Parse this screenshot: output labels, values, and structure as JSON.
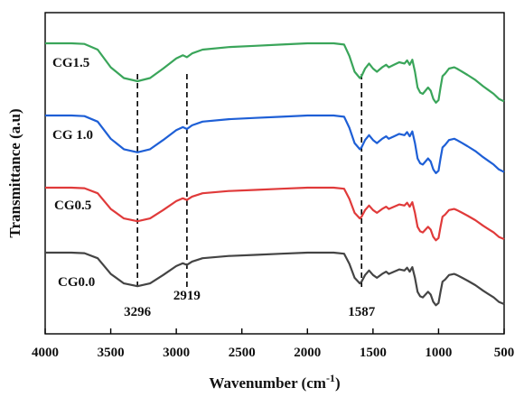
{
  "chart_data": {
    "type": "line",
    "title": "",
    "xlabel_main": "Wavenumber (cm",
    "xlabel_sup": "-1",
    "xlabel_close": ")",
    "ylabel": "Transmittance (a.u)",
    "xlim": [
      4000,
      500
    ],
    "x_reversed": true,
    "x_ticks": [
      4000,
      3500,
      3000,
      2500,
      2000,
      1500,
      1000,
      500
    ],
    "y_ticks_shown": false,
    "grid": false,
    "legend": "inline labels left of each curve",
    "peak_lines": [
      {
        "x": 3296,
        "label": "3296"
      },
      {
        "x": 2919,
        "label": "2919"
      },
      {
        "x": 1587,
        "label": "1587"
      }
    ],
    "series": [
      {
        "name": "CG1.5",
        "color": "#3aa55a",
        "offset": 3,
        "points": [
          [
            4000,
            1.0
          ],
          [
            3800,
            1.0
          ],
          [
            3700,
            0.99
          ],
          [
            3600,
            0.9
          ],
          [
            3500,
            0.62
          ],
          [
            3400,
            0.45
          ],
          [
            3296,
            0.4
          ],
          [
            3200,
            0.45
          ],
          [
            3100,
            0.6
          ],
          [
            3000,
            0.76
          ],
          [
            2950,
            0.81
          ],
          [
            2919,
            0.78
          ],
          [
            2880,
            0.84
          ],
          [
            2800,
            0.9
          ],
          [
            2600,
            0.94
          ],
          [
            2400,
            0.96
          ],
          [
            2200,
            0.98
          ],
          [
            2000,
            1.0
          ],
          [
            1800,
            1.0
          ],
          [
            1720,
            0.98
          ],
          [
            1680,
            0.8
          ],
          [
            1640,
            0.55
          ],
          [
            1600,
            0.45
          ],
          [
            1587,
            0.48
          ],
          [
            1560,
            0.6
          ],
          [
            1530,
            0.68
          ],
          [
            1500,
            0.6
          ],
          [
            1470,
            0.55
          ],
          [
            1430,
            0.62
          ],
          [
            1400,
            0.66
          ],
          [
            1380,
            0.62
          ],
          [
            1340,
            0.66
          ],
          [
            1300,
            0.7
          ],
          [
            1260,
            0.68
          ],
          [
            1240,
            0.73
          ],
          [
            1220,
            0.66
          ],
          [
            1200,
            0.74
          ],
          [
            1180,
            0.55
          ],
          [
            1160,
            0.3
          ],
          [
            1140,
            0.22
          ],
          [
            1120,
            0.2
          ],
          [
            1100,
            0.25
          ],
          [
            1080,
            0.3
          ],
          [
            1060,
            0.25
          ],
          [
            1040,
            0.12
          ],
          [
            1020,
            0.06
          ],
          [
            1000,
            0.1
          ],
          [
            985,
            0.3
          ],
          [
            970,
            0.48
          ],
          [
            950,
            0.52
          ],
          [
            920,
            0.6
          ],
          [
            880,
            0.62
          ],
          [
            860,
            0.6
          ],
          [
            820,
            0.55
          ],
          [
            780,
            0.5
          ],
          [
            720,
            0.42
          ],
          [
            660,
            0.32
          ],
          [
            620,
            0.26
          ],
          [
            580,
            0.2
          ],
          [
            540,
            0.12
          ],
          [
            500,
            0.08
          ]
        ]
      },
      {
        "name": "CG 1.0",
        "color": "#1e5fd6",
        "offset": 2,
        "points": [
          [
            4000,
            1.0
          ],
          [
            3800,
            1.0
          ],
          [
            3700,
            0.99
          ],
          [
            3600,
            0.9
          ],
          [
            3500,
            0.62
          ],
          [
            3400,
            0.45
          ],
          [
            3296,
            0.4
          ],
          [
            3200,
            0.45
          ],
          [
            3100,
            0.6
          ],
          [
            3000,
            0.76
          ],
          [
            2950,
            0.81
          ],
          [
            2919,
            0.78
          ],
          [
            2880,
            0.84
          ],
          [
            2800,
            0.9
          ],
          [
            2600,
            0.94
          ],
          [
            2400,
            0.96
          ],
          [
            2200,
            0.98
          ],
          [
            2000,
            1.0
          ],
          [
            1800,
            1.0
          ],
          [
            1720,
            0.98
          ],
          [
            1680,
            0.8
          ],
          [
            1640,
            0.55
          ],
          [
            1600,
            0.45
          ],
          [
            1587,
            0.48
          ],
          [
            1560,
            0.6
          ],
          [
            1530,
            0.68
          ],
          [
            1500,
            0.6
          ],
          [
            1470,
            0.55
          ],
          [
            1430,
            0.62
          ],
          [
            1400,
            0.66
          ],
          [
            1380,
            0.62
          ],
          [
            1340,
            0.66
          ],
          [
            1300,
            0.7
          ],
          [
            1260,
            0.68
          ],
          [
            1240,
            0.73
          ],
          [
            1220,
            0.66
          ],
          [
            1200,
            0.74
          ],
          [
            1180,
            0.55
          ],
          [
            1160,
            0.3
          ],
          [
            1140,
            0.22
          ],
          [
            1120,
            0.2
          ],
          [
            1100,
            0.25
          ],
          [
            1080,
            0.3
          ],
          [
            1060,
            0.25
          ],
          [
            1040,
            0.12
          ],
          [
            1020,
            0.06
          ],
          [
            1000,
            0.1
          ],
          [
            985,
            0.3
          ],
          [
            970,
            0.48
          ],
          [
            950,
            0.52
          ],
          [
            920,
            0.6
          ],
          [
            880,
            0.62
          ],
          [
            860,
            0.6
          ],
          [
            820,
            0.55
          ],
          [
            780,
            0.5
          ],
          [
            720,
            0.42
          ],
          [
            660,
            0.32
          ],
          [
            620,
            0.26
          ],
          [
            580,
            0.2
          ],
          [
            540,
            0.12
          ],
          [
            500,
            0.08
          ]
        ]
      },
      {
        "name": "CG0.5",
        "color": "#e03a3a",
        "offset": 1,
        "points": [
          [
            4000,
            1.0
          ],
          [
            3800,
            1.0
          ],
          [
            3700,
            0.99
          ],
          [
            3600,
            0.9
          ],
          [
            3500,
            0.62
          ],
          [
            3400,
            0.45
          ],
          [
            3296,
            0.4
          ],
          [
            3200,
            0.45
          ],
          [
            3100,
            0.6
          ],
          [
            3000,
            0.76
          ],
          [
            2950,
            0.81
          ],
          [
            2919,
            0.78
          ],
          [
            2880,
            0.84
          ],
          [
            2800,
            0.9
          ],
          [
            2600,
            0.94
          ],
          [
            2400,
            0.96
          ],
          [
            2200,
            0.98
          ],
          [
            2000,
            1.0
          ],
          [
            1800,
            1.0
          ],
          [
            1720,
            0.98
          ],
          [
            1680,
            0.8
          ],
          [
            1640,
            0.55
          ],
          [
            1600,
            0.45
          ],
          [
            1587,
            0.48
          ],
          [
            1560,
            0.6
          ],
          [
            1530,
            0.68
          ],
          [
            1500,
            0.6
          ],
          [
            1470,
            0.55
          ],
          [
            1430,
            0.62
          ],
          [
            1400,
            0.66
          ],
          [
            1380,
            0.62
          ],
          [
            1340,
            0.66
          ],
          [
            1300,
            0.7
          ],
          [
            1260,
            0.68
          ],
          [
            1240,
            0.73
          ],
          [
            1220,
            0.66
          ],
          [
            1200,
            0.74
          ],
          [
            1180,
            0.55
          ],
          [
            1160,
            0.3
          ],
          [
            1140,
            0.22
          ],
          [
            1120,
            0.2
          ],
          [
            1100,
            0.25
          ],
          [
            1080,
            0.3
          ],
          [
            1060,
            0.25
          ],
          [
            1040,
            0.12
          ],
          [
            1020,
            0.06
          ],
          [
            1000,
            0.1
          ],
          [
            985,
            0.3
          ],
          [
            970,
            0.48
          ],
          [
            950,
            0.52
          ],
          [
            920,
            0.6
          ],
          [
            880,
            0.62
          ],
          [
            860,
            0.6
          ],
          [
            820,
            0.55
          ],
          [
            780,
            0.5
          ],
          [
            720,
            0.42
          ],
          [
            660,
            0.32
          ],
          [
            620,
            0.26
          ],
          [
            580,
            0.2
          ],
          [
            540,
            0.12
          ],
          [
            500,
            0.08
          ]
        ]
      },
      {
        "name": "CG0.0",
        "color": "#444444",
        "offset": 0,
        "points": [
          [
            4000,
            1.0
          ],
          [
            3800,
            1.0
          ],
          [
            3700,
            0.99
          ],
          [
            3600,
            0.9
          ],
          [
            3500,
            0.62
          ],
          [
            3400,
            0.45
          ],
          [
            3296,
            0.4
          ],
          [
            3200,
            0.45
          ],
          [
            3100,
            0.6
          ],
          [
            3000,
            0.76
          ],
          [
            2950,
            0.81
          ],
          [
            2919,
            0.78
          ],
          [
            2880,
            0.84
          ],
          [
            2800,
            0.9
          ],
          [
            2600,
            0.94
          ],
          [
            2400,
            0.96
          ],
          [
            2200,
            0.98
          ],
          [
            2000,
            1.0
          ],
          [
            1800,
            1.0
          ],
          [
            1720,
            0.98
          ],
          [
            1680,
            0.8
          ],
          [
            1640,
            0.55
          ],
          [
            1600,
            0.45
          ],
          [
            1587,
            0.48
          ],
          [
            1560,
            0.6
          ],
          [
            1530,
            0.68
          ],
          [
            1500,
            0.6
          ],
          [
            1470,
            0.55
          ],
          [
            1430,
            0.62
          ],
          [
            1400,
            0.66
          ],
          [
            1380,
            0.62
          ],
          [
            1340,
            0.66
          ],
          [
            1300,
            0.7
          ],
          [
            1260,
            0.68
          ],
          [
            1240,
            0.73
          ],
          [
            1220,
            0.66
          ],
          [
            1200,
            0.74
          ],
          [
            1180,
            0.55
          ],
          [
            1160,
            0.3
          ],
          [
            1140,
            0.22
          ],
          [
            1120,
            0.2
          ],
          [
            1100,
            0.25
          ],
          [
            1080,
            0.3
          ],
          [
            1060,
            0.25
          ],
          [
            1040,
            0.12
          ],
          [
            1020,
            0.06
          ],
          [
            1000,
            0.1
          ],
          [
            985,
            0.3
          ],
          [
            970,
            0.48
          ],
          [
            950,
            0.52
          ],
          [
            920,
            0.6
          ],
          [
            880,
            0.62
          ],
          [
            860,
            0.6
          ],
          [
            820,
            0.55
          ],
          [
            780,
            0.5
          ],
          [
            720,
            0.42
          ],
          [
            660,
            0.32
          ],
          [
            620,
            0.26
          ],
          [
            580,
            0.2
          ],
          [
            540,
            0.12
          ],
          [
            500,
            0.08
          ]
        ]
      }
    ]
  }
}
